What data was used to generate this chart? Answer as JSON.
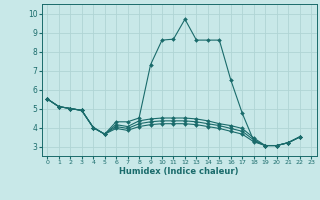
{
  "xlabel": "Humidex (Indice chaleur)",
  "background_color": "#c8e8e8",
  "line_color": "#1a6b6b",
  "grid_color": "#b0d4d4",
  "xlim": [
    -0.5,
    23.5
  ],
  "ylim": [
    2.5,
    10.5
  ],
  "xticks": [
    0,
    1,
    2,
    3,
    4,
    5,
    6,
    7,
    8,
    9,
    10,
    11,
    12,
    13,
    14,
    15,
    16,
    17,
    18,
    19,
    20,
    21,
    22,
    23
  ],
  "yticks": [
    3,
    4,
    5,
    6,
    7,
    8,
    9,
    10
  ],
  "curves": [
    [
      5.5,
      5.1,
      5.0,
      4.9,
      4.0,
      3.65,
      4.3,
      4.3,
      4.5,
      7.3,
      8.6,
      8.65,
      9.7,
      8.6,
      8.6,
      8.6,
      6.5,
      4.75,
      3.3,
      3.05,
      3.05,
      3.2,
      3.5,
      null
    ],
    [
      5.5,
      5.1,
      5.0,
      4.9,
      4.0,
      3.65,
      4.15,
      4.05,
      4.35,
      4.45,
      4.5,
      4.5,
      4.5,
      4.45,
      4.35,
      4.2,
      4.1,
      3.95,
      3.45,
      3.05,
      3.05,
      3.2,
      3.5,
      null
    ],
    [
      5.5,
      5.1,
      5.0,
      4.9,
      4.0,
      3.65,
      4.05,
      3.95,
      4.2,
      4.3,
      4.35,
      4.35,
      4.35,
      4.3,
      4.2,
      4.1,
      3.95,
      3.8,
      3.35,
      3.05,
      3.05,
      3.2,
      3.5,
      null
    ],
    [
      5.5,
      5.1,
      5.0,
      4.9,
      4.0,
      3.65,
      3.95,
      3.85,
      4.05,
      4.15,
      4.2,
      4.2,
      4.2,
      4.15,
      4.05,
      3.95,
      3.8,
      3.65,
      3.25,
      3.05,
      3.05,
      3.2,
      3.5,
      null
    ]
  ]
}
